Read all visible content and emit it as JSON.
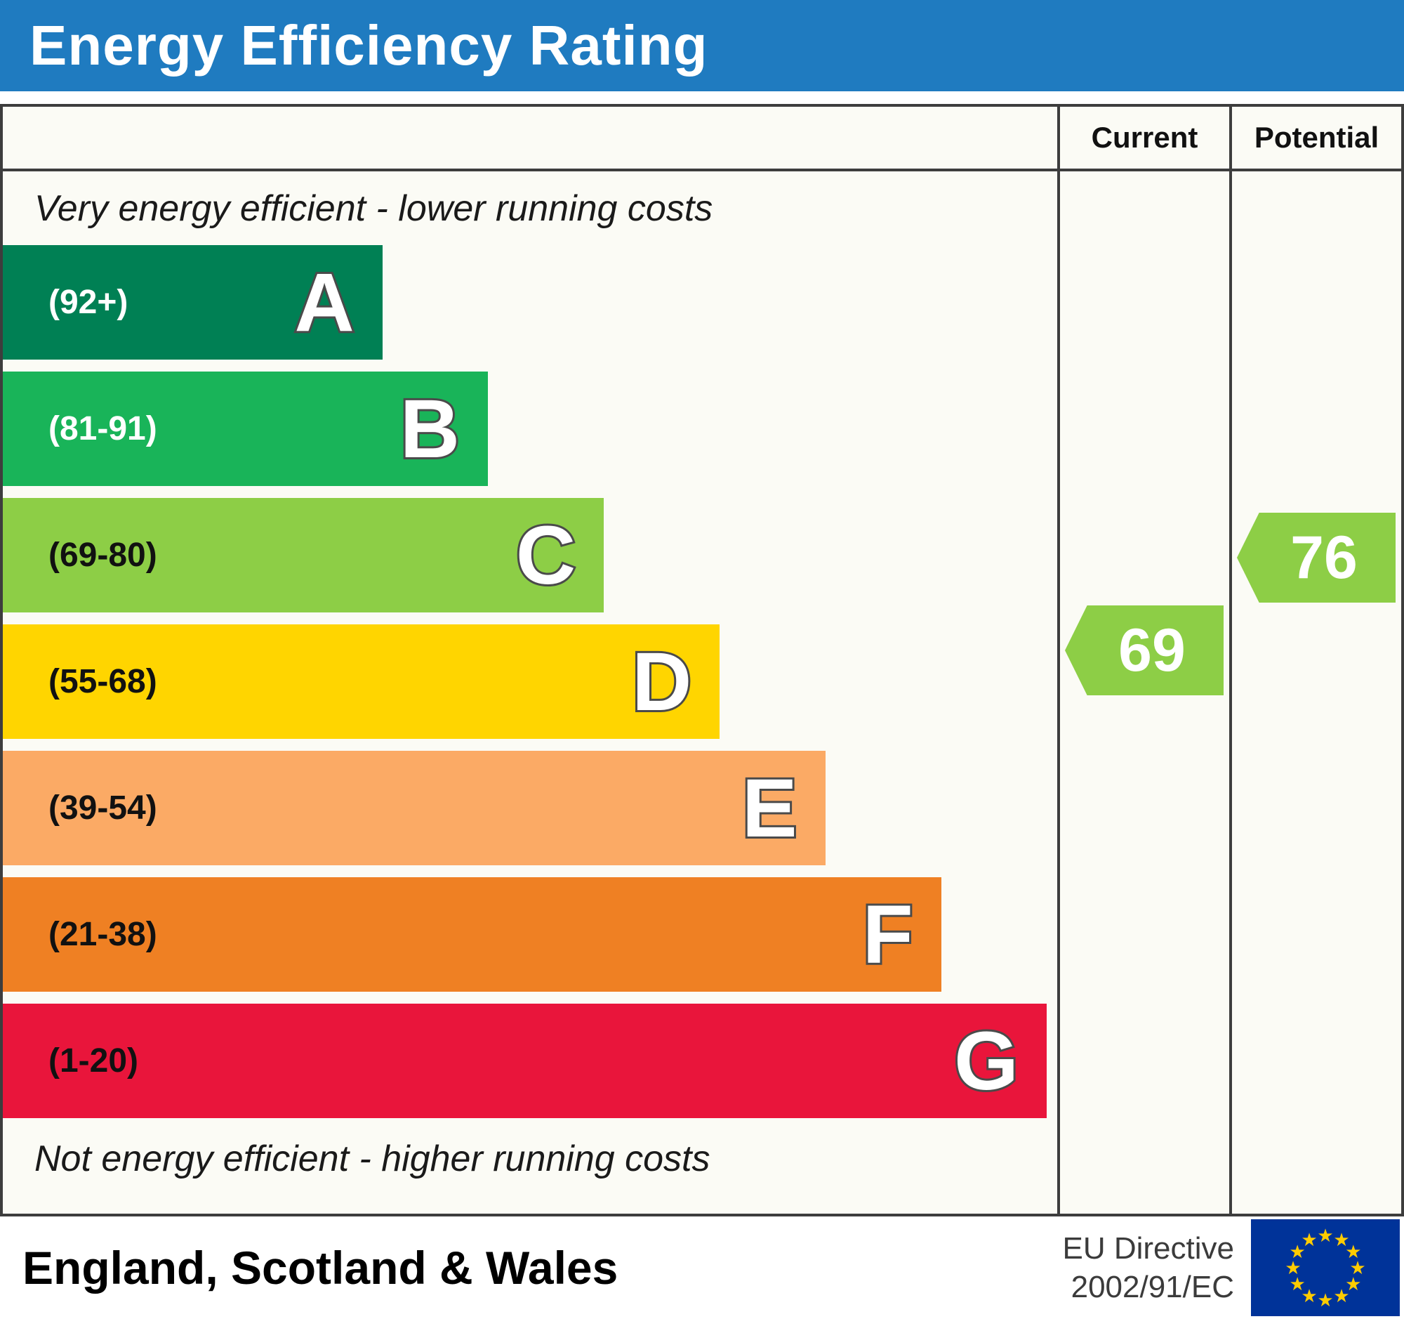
{
  "title": "Energy Efficiency Rating",
  "columns": {
    "current": "Current",
    "potential": "Potential"
  },
  "captions": {
    "top": "Very energy efficient - lower running costs",
    "bottom": "Not energy efficient - higher running costs"
  },
  "chart_data": {
    "type": "bar",
    "title": "Energy Efficiency Rating",
    "bands": [
      {
        "letter": "A",
        "range": "(92+)",
        "min": 92,
        "max": 100,
        "color": "#008054",
        "width_pct": 36,
        "range_text_color": "#ffffff"
      },
      {
        "letter": "B",
        "range": "(81-91)",
        "min": 81,
        "max": 91,
        "color": "#19b459",
        "width_pct": 46,
        "range_text_color": "#ffffff"
      },
      {
        "letter": "C",
        "range": "(69-80)",
        "min": 69,
        "max": 80,
        "color": "#8dce46",
        "width_pct": 57,
        "range_text_color": "#111111"
      },
      {
        "letter": "D",
        "range": "(55-68)",
        "min": 55,
        "max": 68,
        "color": "#ffd500",
        "width_pct": 68,
        "range_text_color": "#111111"
      },
      {
        "letter": "E",
        "range": "(39-54)",
        "min": 39,
        "max": 54,
        "color": "#fbaa65",
        "width_pct": 78,
        "range_text_color": "#111111"
      },
      {
        "letter": "F",
        "range": "(21-38)",
        "min": 21,
        "max": 38,
        "color": "#ef8023",
        "width_pct": 89,
        "range_text_color": "#111111"
      },
      {
        "letter": "G",
        "range": "(1-20)",
        "min": 1,
        "max": 20,
        "color": "#e9153b",
        "width_pct": 99,
        "range_text_color": "#111111"
      }
    ],
    "current": {
      "value": 69,
      "band": "C",
      "color": "#8dce46"
    },
    "potential": {
      "value": 76,
      "band": "C",
      "color": "#8dce46"
    },
    "legend_position": "none",
    "grid": false
  },
  "footer": {
    "region": "England, Scotland & Wales",
    "directive_line1": "EU Directive",
    "directive_line2": "2002/91/EC",
    "flag": {
      "background": "#003399",
      "star_color": "#ffcc00"
    }
  },
  "colors": {
    "header_background": "#1f7bc0",
    "border": "#3d3d3d",
    "chart_background": "#fbfbf5"
  }
}
